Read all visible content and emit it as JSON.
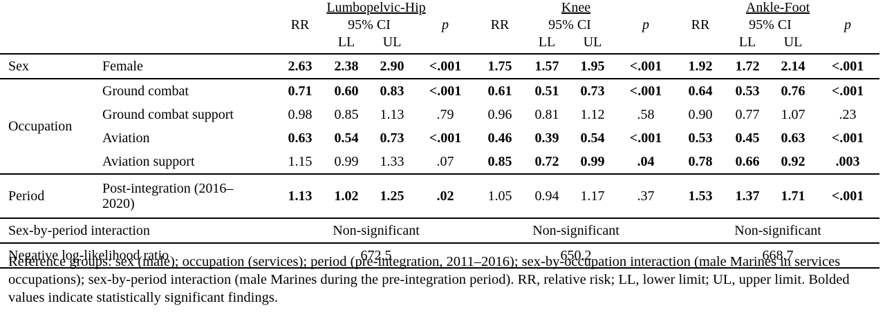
{
  "groups": [
    "Lumbopelvic-Hip",
    "Knee",
    "Ankle-Foot"
  ],
  "subheaders": {
    "rr": "RR",
    "ci": "95% CI",
    "p": "p",
    "ll": "LL",
    "ul": "UL"
  },
  "rows": {
    "female": {
      "section": "Sex",
      "label": "Female",
      "vals": [
        [
          "2.63",
          "2.38",
          "2.90",
          "<.001"
        ],
        [
          "1.75",
          "1.57",
          "1.95",
          "<.001"
        ],
        [
          "1.92",
          "1.72",
          "2.14",
          "<.001"
        ]
      ]
    },
    "ground_combat": {
      "section": "Occupation",
      "label": "Ground combat",
      "vals": [
        [
          "0.71",
          "0.60",
          "0.83",
          "<.001"
        ],
        [
          "0.61",
          "0.51",
          "0.73",
          "<.001"
        ],
        [
          "0.64",
          "0.53",
          "0.76",
          "<.001"
        ]
      ]
    },
    "ground_combat_support": {
      "label": "Ground combat support",
      "vals": [
        [
          "0.98",
          "0.85",
          "1.13",
          ".79"
        ],
        [
          "0.96",
          "0.81",
          "1.12",
          ".58"
        ],
        [
          "0.90",
          "0.77",
          "1.07",
          ".23"
        ]
      ]
    },
    "aviation": {
      "label": "Aviation",
      "vals": [
        [
          "0.63",
          "0.54",
          "0.73",
          "<.001"
        ],
        [
          "0.46",
          "0.39",
          "0.54",
          "<.001"
        ],
        [
          "0.53",
          "0.45",
          "0.63",
          "<.001"
        ]
      ]
    },
    "aviation_support": {
      "label": "Aviation support",
      "vals": [
        [
          "1.15",
          "0.99",
          "1.33",
          ".07"
        ],
        [
          "0.85",
          "0.72",
          "0.99",
          ".04"
        ],
        [
          "0.78",
          "0.66",
          "0.92",
          ".003"
        ]
      ]
    },
    "post_integration": {
      "section": "Period",
      "label": "Post-integration (2016–2020)",
      "vals": [
        [
          "1.13",
          "1.02",
          "1.25",
          ".02"
        ],
        [
          "1.05",
          "0.94",
          "1.17",
          ".37"
        ],
        [
          "1.53",
          "1.37",
          "1.71",
          "<.001"
        ]
      ]
    }
  },
  "sex_by_period": {
    "label": "Sex-by-period interaction",
    "vals": [
      "Non-significant",
      "Non-significant",
      "Non-significant"
    ]
  },
  "neg_log_likelihood": {
    "label": "Negative log-likelihood ratio",
    "vals": [
      "672.5",
      "650.2",
      "668.7"
    ]
  },
  "footnote": "Reference groups: sex (male); occupation (services); period (pre-integration, 2011–2016); sex-by-occupation interaction (male Marines in services occupations); sex-by-period interaction (male Marines during the pre-integration period). RR, relative risk; LL, lower limit; UL, upper limit. Bolded values indicate statistically significant findings."
}
